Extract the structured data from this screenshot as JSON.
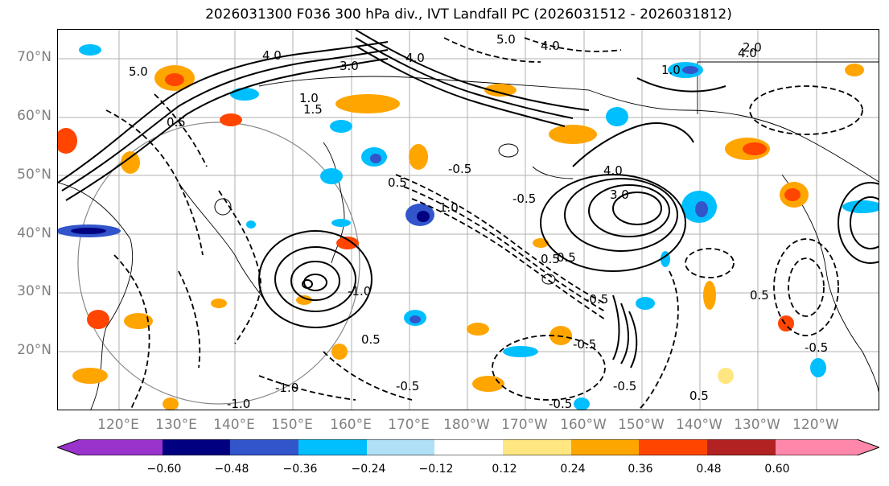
{
  "title": "2026031300 F036 300 hPa div., IVT Landfall PC (2026031512 - 2026031812)",
  "lat_labels": [
    "70°N",
    "60°N",
    "50°N",
    "40°N",
    "30°N",
    "20°N"
  ],
  "lon_labels": [
    "120°E",
    "130°E",
    "140°E",
    "150°E",
    "160°E",
    "170°E",
    "180°W",
    "170°W",
    "160°W",
    "150°W",
    "140°W",
    "130°W",
    "120°W"
  ],
  "contour_labels": [
    "5.0",
    "4.0",
    "3.0",
    "4.0",
    "5.0",
    "4.0",
    "2.0",
    "4.0",
    "1.0",
    "1.5",
    "1.0",
    "4.0",
    "3.0",
    "0.5",
    "-0.5",
    "-0.5",
    "0.5",
    "-0.5",
    "0.5",
    "-0.5",
    "-0.5",
    "0.5",
    "-1.0",
    "-1.0",
    "-1.0",
    "-0.5",
    "0.5",
    "-0.5",
    "0.5",
    "-0.5",
    "0.5",
    "1.0"
  ],
  "colorbar": {
    "colors": [
      "#9933cc",
      "#000080",
      "#3355cc",
      "#00bfff",
      "#b0e0f5",
      "#ffffff",
      "#ffe680",
      "#ffa500",
      "#ff4500",
      "#b22222",
      "#ff88aa"
    ],
    "ticks": [
      "−0.60",
      "−0.48",
      "−0.36",
      "−0.24",
      "−0.12",
      "0.12",
      "0.24",
      "0.36",
      "0.48",
      "0.60"
    ]
  }
}
